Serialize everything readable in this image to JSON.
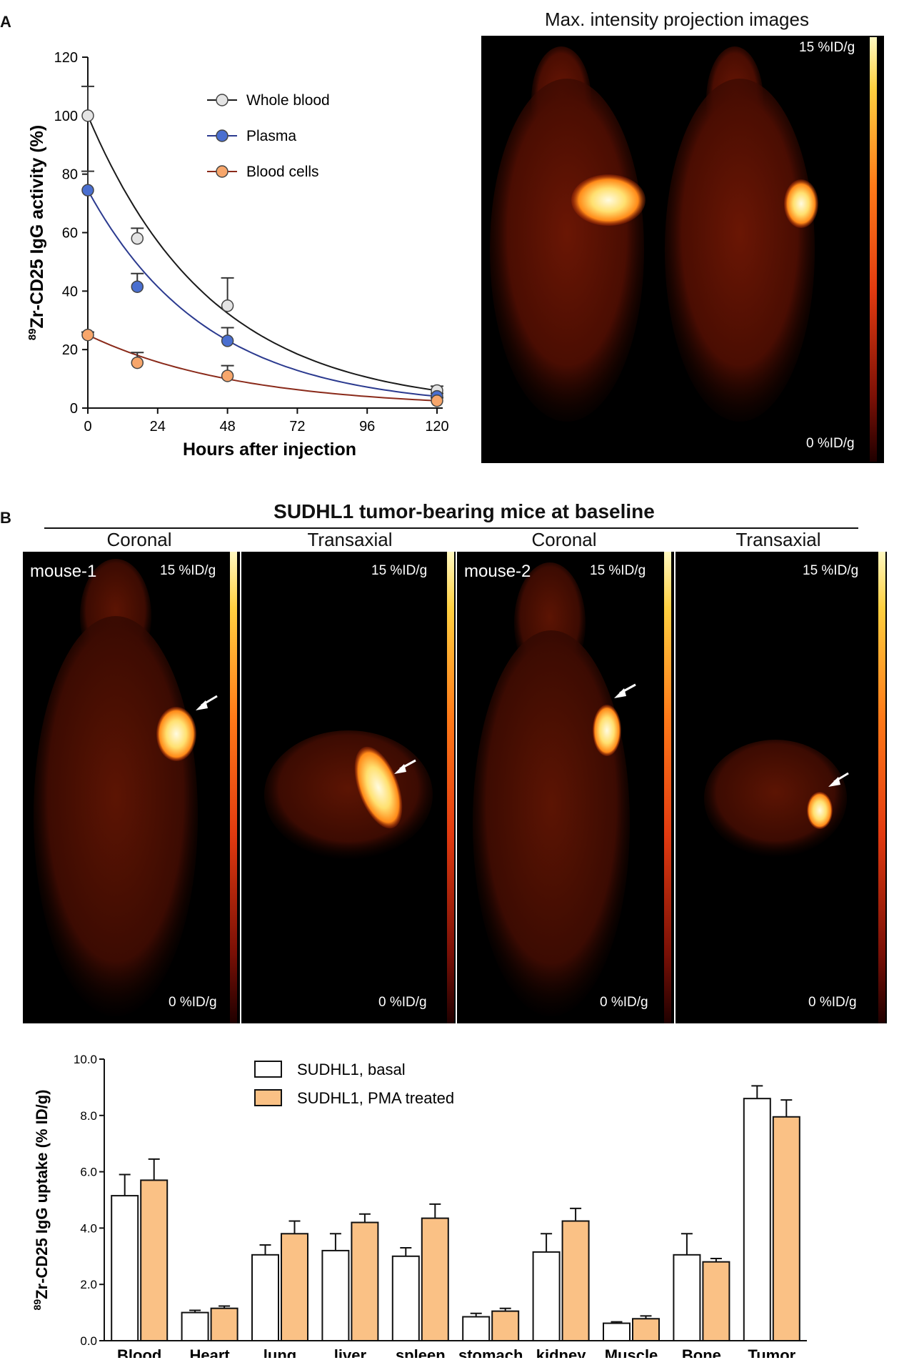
{
  "panel_a": {
    "letter": "A",
    "mip_title": "Max. intensity projection images",
    "scale_max": "15 %ID/g",
    "scale_min": "0 %ID/g"
  },
  "panel_b": {
    "letter": "B",
    "title": "SUDHL1 tumor-bearing mice at baseline",
    "views": [
      "Coronal",
      "Transaxial",
      "Coronal",
      "Transaxial"
    ],
    "mouse_labels": [
      "mouse-1",
      "mouse-2"
    ],
    "scale_max": "15 %ID/g",
    "scale_min": "0 %ID/g"
  },
  "chart_data": [
    {
      "type": "line",
      "ylabel_sup": "89",
      "ylabel": "Zr-CD25 IgG activity (%)",
      "xlabel": "Hours after injection",
      "xlim": [
        0,
        120
      ],
      "ylim": [
        0,
        120
      ],
      "xticks": [
        0,
        24,
        48,
        72,
        96,
        120
      ],
      "yticks": [
        0,
        20,
        40,
        60,
        80,
        100,
        120
      ],
      "legend_position": "top-center",
      "series": [
        {
          "name": "Whole blood",
          "color": "#1a1a1a",
          "marker": "#e4e4e4",
          "x": [
            0,
            17,
            48,
            120
          ],
          "y": [
            100,
            58,
            35,
            6
          ],
          "err": [
            10,
            3.5,
            9.5,
            1.5
          ]
        },
        {
          "name": "Plasma",
          "color": "#2b3a8f",
          "marker": "#4a6fd0",
          "x": [
            0,
            17,
            48,
            120
          ],
          "y": [
            74.5,
            41.5,
            23,
            4
          ],
          "err": [
            6.5,
            4.5,
            4.5,
            1
          ]
        },
        {
          "name": "Blood cells",
          "color": "#8a2a1a",
          "marker": "#f7a66b",
          "x": [
            0,
            17,
            48,
            120
          ],
          "y": [
            25,
            15.5,
            11,
            2.5
          ],
          "err": [
            1,
            3.5,
            3.5,
            1
          ]
        }
      ]
    },
    {
      "type": "bar",
      "ylabel_sup": "89",
      "ylabel": "Zr-CD25 IgG uptake (% ID/g)",
      "ylim": [
        0,
        10
      ],
      "yticks": [
        "0.0",
        "2.0",
        "4.0",
        "6.0",
        "8.0",
        "10.0"
      ],
      "legend_position": "top-center",
      "categories": [
        "Blood",
        "Heart",
        "lung",
        "liver",
        "spleen",
        "stomach",
        "kidney",
        "Muscle",
        "Bone",
        "Tumor"
      ],
      "series": [
        {
          "name": "SUDHL1, basal",
          "color": "#ffffff",
          "values": [
            5.15,
            1.0,
            3.05,
            3.2,
            3.0,
            0.85,
            3.15,
            0.62,
            3.05,
            8.6
          ],
          "err": [
            0.75,
            0.08,
            0.35,
            0.6,
            0.3,
            0.12,
            0.65,
            0.05,
            0.75,
            0.45
          ]
        },
        {
          "name": "SUDHL1, PMA treated",
          "color": "#fac185",
          "values": [
            5.7,
            1.15,
            3.8,
            4.2,
            4.35,
            1.05,
            4.25,
            0.78,
            2.8,
            7.95
          ],
          "err": [
            0.75,
            0.08,
            0.45,
            0.3,
            0.5,
            0.1,
            0.45,
            0.1,
            0.12,
            0.6
          ]
        }
      ]
    }
  ]
}
